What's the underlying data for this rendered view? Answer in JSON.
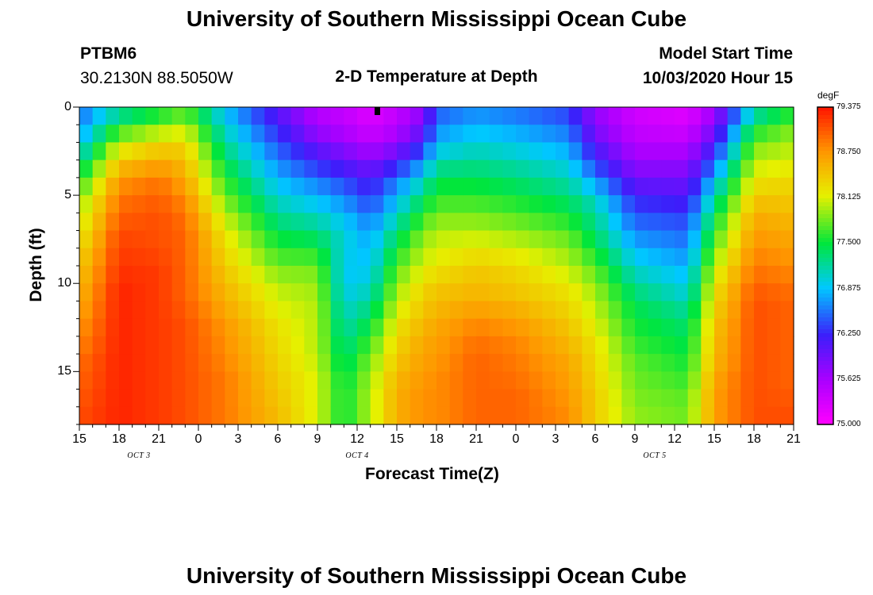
{
  "header": {
    "title": "University of Southern Mississippi Ocean Cube",
    "station": "PTBM6",
    "coords": "30.2130N 88.5050W",
    "subtitle": "2-D Temperature at Depth",
    "model_start_label": "Model Start Time",
    "model_start_value": "10/03/2020 Hour 15"
  },
  "footer": {
    "title": "University of Southern Mississippi Ocean Cube"
  },
  "chart_data": {
    "type": "heatmap",
    "title": "2-D Temperature at Depth",
    "xlabel": "Forecast Time(Z)",
    "ylabel": "Depth (ft)",
    "x_hours_range": [
      0,
      54
    ],
    "ylim": [
      0,
      18
    ],
    "y_inverted": true,
    "x_ticks": [
      "15",
      "18",
      "21",
      "0",
      "3",
      "6",
      "9",
      "12",
      "15",
      "18",
      "21",
      "0",
      "3",
      "6",
      "9",
      "12",
      "15",
      "18",
      "21"
    ],
    "y_ticks": [
      "0",
      "5",
      "10",
      "15"
    ],
    "y_tick_values": [
      0,
      5,
      10,
      15
    ],
    "date_labels": [
      {
        "label": "OCT 3",
        "hour": 4.5
      },
      {
        "label": "OCT 4",
        "hour": 21
      },
      {
        "label": "OCT 5",
        "hour": 43.5
      }
    ],
    "colorbar": {
      "unit": "degF",
      "min": 75.0,
      "max": 79.375,
      "tick_labels": [
        "79.375",
        "78.750",
        "78.125",
        "77.500",
        "76.875",
        "76.250",
        "75.625",
        "75.000"
      ]
    },
    "current_time_marker_hour": 22.5,
    "depth_levels_ft": [
      0,
      1,
      2,
      3,
      4,
      5,
      6,
      7,
      8,
      9,
      10,
      11,
      12,
      13,
      14,
      15,
      16,
      17,
      18
    ],
    "profiles": [
      {
        "hour": 0,
        "temps": [
          76.5,
          76.6,
          76.8,
          77.2,
          77.5,
          77.8,
          78.0,
          78.1,
          78.3,
          78.4,
          78.5,
          78.6,
          78.7,
          78.8,
          78.9,
          79.0,
          79.0,
          79.1,
          79.1
        ]
      },
      {
        "hour": 3,
        "temps": [
          77.0,
          77.5,
          78.0,
          78.4,
          78.7,
          78.9,
          79.0,
          79.1,
          79.2,
          79.2,
          79.3,
          79.3,
          79.3,
          79.3,
          79.3,
          79.3,
          79.3,
          79.3,
          79.3
        ]
      },
      {
        "hour": 6,
        "temps": [
          77.4,
          77.8,
          78.3,
          78.6,
          78.9,
          79.0,
          79.1,
          79.1,
          79.1,
          79.2,
          79.2,
          79.2,
          79.2,
          79.2,
          79.2,
          79.2,
          79.2,
          79.2,
          79.2
        ]
      },
      {
        "hour": 8,
        "temps": [
          77.6,
          78.0,
          78.3,
          78.5,
          78.6,
          78.8,
          78.9,
          79.0,
          79.0,
          79.0,
          79.0,
          79.0,
          79.1,
          79.1,
          79.1,
          79.1,
          79.1,
          79.1,
          79.1
        ]
      },
      {
        "hour": 11,
        "temps": [
          76.8,
          77.0,
          77.2,
          77.4,
          77.6,
          77.8,
          78.0,
          78.2,
          78.3,
          78.4,
          78.5,
          78.6,
          78.7,
          78.8,
          78.8,
          78.9,
          78.9,
          78.9,
          78.9
        ]
      },
      {
        "hour": 15,
        "temps": [
          76.0,
          76.2,
          76.4,
          76.6,
          76.8,
          77.0,
          77.2,
          77.4,
          77.6,
          77.8,
          78.0,
          78.1,
          78.2,
          78.3,
          78.3,
          78.4,
          78.4,
          78.5,
          78.5
        ]
      },
      {
        "hour": 18,
        "temps": [
          75.5,
          75.6,
          75.9,
          76.2,
          76.5,
          76.8,
          77.0,
          77.3,
          77.5,
          77.8,
          77.9,
          78.0,
          78.0,
          78.0,
          78.0,
          78.1,
          78.1,
          78.1,
          78.1
        ]
      },
      {
        "hour": 20,
        "temps": [
          75.4,
          75.5,
          75.7,
          76.0,
          76.3,
          76.6,
          76.8,
          77.0,
          77.0,
          76.9,
          76.9,
          77.0,
          77.1,
          77.2,
          77.3,
          77.4,
          77.5,
          77.5,
          77.5
        ]
      },
      {
        "hour": 22,
        "temps": [
          75.2,
          75.3,
          75.5,
          75.8,
          76.1,
          76.3,
          76.5,
          76.7,
          76.8,
          76.9,
          77.0,
          77.2,
          77.4,
          77.6,
          77.8,
          77.9,
          78.0,
          78.0,
          78.0
        ]
      },
      {
        "hour": 24,
        "temps": [
          75.4,
          75.5,
          75.7,
          76.1,
          76.5,
          76.8,
          77.0,
          77.3,
          77.5,
          77.7,
          77.9,
          78.0,
          78.2,
          78.3,
          78.4,
          78.5,
          78.6,
          78.6,
          78.6
        ]
      },
      {
        "hour": 26,
        "temps": [
          75.7,
          75.9,
          76.2,
          76.6,
          77.0,
          77.3,
          77.6,
          77.8,
          78.0,
          78.1,
          78.3,
          78.4,
          78.5,
          78.6,
          78.7,
          78.7,
          78.8,
          78.8,
          78.8
        ]
      },
      {
        "hour": 27,
        "temps": [
          76.4,
          76.6,
          76.8,
          77.1,
          77.4,
          77.6,
          77.8,
          78.0,
          78.1,
          78.2,
          78.4,
          78.5,
          78.6,
          78.7,
          78.7,
          78.8,
          78.8,
          78.8,
          78.8
        ]
      },
      {
        "hour": 30,
        "temps": [
          76.6,
          76.8,
          77.0,
          77.2,
          77.4,
          77.6,
          77.8,
          78.0,
          78.2,
          78.4,
          78.5,
          78.6,
          78.8,
          78.9,
          79.0,
          79.0,
          79.0,
          79.0,
          79.0
        ]
      },
      {
        "hour": 33,
        "temps": [
          76.5,
          76.7,
          76.9,
          77.1,
          77.3,
          77.5,
          77.7,
          77.9,
          78.1,
          78.3,
          78.4,
          78.5,
          78.7,
          78.8,
          78.9,
          78.9,
          79.0,
          79.0,
          79.0
        ]
      },
      {
        "hour": 37,
        "temps": [
          76.3,
          76.5,
          76.7,
          76.9,
          77.1,
          77.3,
          77.5,
          77.7,
          77.9,
          78.0,
          78.2,
          78.3,
          78.4,
          78.5,
          78.6,
          78.7,
          78.7,
          78.8,
          78.8
        ]
      },
      {
        "hour": 39,
        "temps": [
          75.7,
          75.8,
          76.0,
          76.3,
          76.6,
          77.0,
          77.2,
          77.3,
          77.5,
          77.7,
          77.9,
          78.0,
          78.1,
          78.2,
          78.3,
          78.3,
          78.4,
          78.4,
          78.4
        ]
      },
      {
        "hour": 42,
        "temps": [
          75.3,
          75.4,
          75.5,
          75.7,
          75.9,
          76.2,
          76.4,
          76.6,
          76.8,
          77.0,
          77.2,
          77.4,
          77.5,
          77.6,
          77.7,
          77.8,
          77.8,
          77.9,
          77.9
        ]
      },
      {
        "hour": 46,
        "temps": [
          75.2,
          75.3,
          75.5,
          75.7,
          75.9,
          76.1,
          76.3,
          76.5,
          76.6,
          76.8,
          76.9,
          77.1,
          77.3,
          77.4,
          77.5,
          77.6,
          77.7,
          77.8,
          77.8
        ]
      },
      {
        "hour": 48,
        "temps": [
          75.6,
          75.8,
          76.1,
          76.4,
          76.8,
          77.1,
          77.4,
          77.6,
          77.8,
          78.0,
          78.2,
          78.3,
          78.4,
          78.5,
          78.5,
          78.6,
          78.7,
          78.7,
          78.7
        ]
      },
      {
        "hour": 51,
        "temps": [
          77.0,
          77.4,
          77.8,
          78.0,
          78.2,
          78.4,
          78.6,
          78.7,
          78.8,
          78.9,
          79.0,
          79.1,
          79.1,
          79.1,
          79.1,
          79.1,
          79.1,
          79.1,
          79.1
        ]
      },
      {
        "hour": 54,
        "temps": [
          77.5,
          77.8,
          78.0,
          78.1,
          78.3,
          78.4,
          78.5,
          78.6,
          78.7,
          78.8,
          78.9,
          79.0,
          79.0,
          79.0,
          79.0,
          79.0,
          79.0,
          79.1,
          79.1
        ]
      }
    ]
  }
}
